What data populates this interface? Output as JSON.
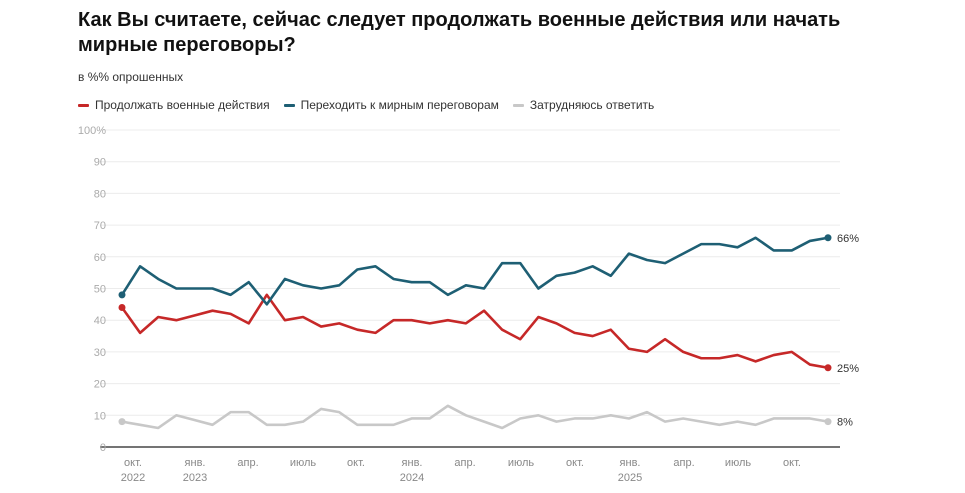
{
  "title": "Как Вы считаете, сейчас следует продолжать военные действия или начать мирные переговоры?",
  "subtitle": "в %% опрошенных",
  "chart_data": {
    "type": "line",
    "title": "Как Вы считаете, сейчас следует продолжать военные действия или начать мирные переговоры?",
    "ylabel": "в %% опрошенных",
    "ylim": [
      0,
      100
    ],
    "y_ticks": [
      "0",
      "10",
      "20",
      "30",
      "40",
      "50",
      "60",
      "70",
      "80",
      "90",
      "100%"
    ],
    "x_tick_labels": [
      [
        "окт.",
        "2022"
      ],
      [
        "янв.",
        "2023"
      ],
      [
        "апр.",
        ""
      ],
      [
        "июль",
        ""
      ],
      [
        "окт.",
        ""
      ],
      [
        "янв.",
        "2024"
      ],
      [
        "апр.",
        ""
      ],
      [
        "июль",
        ""
      ],
      [
        "окт.",
        ""
      ],
      [
        "янв.",
        "2025"
      ],
      [
        "апр.",
        ""
      ],
      [
        "июль",
        ""
      ],
      [
        "окт.",
        ""
      ]
    ],
    "grid": true,
    "legend": "top-left",
    "series": [
      {
        "name": "Продолжать военные действия",
        "color": "#c62828",
        "end_label": "25%",
        "values": [
          44,
          36,
          41,
          40,
          41.5,
          43,
          42,
          39,
          48,
          40,
          41,
          38,
          39,
          37,
          36,
          40,
          40,
          39,
          40,
          39,
          43,
          37,
          34,
          41,
          39,
          36,
          35,
          37,
          31,
          30,
          34,
          30,
          28,
          28,
          29,
          27,
          29,
          30,
          26,
          25
        ]
      },
      {
        "name": "Переходить к мирным переговорам",
        "color": "#1e5f74",
        "end_label": "66%",
        "values": [
          48,
          57,
          53,
          50,
          50,
          50,
          48,
          52,
          45,
          53,
          51,
          50,
          51,
          56,
          57,
          53,
          52,
          52,
          48,
          51,
          50,
          58,
          58,
          50,
          54,
          55,
          57,
          54,
          61,
          59,
          58,
          61,
          64,
          64,
          63,
          66,
          62,
          62,
          65,
          66
        ]
      },
      {
        "name": "Затрудняюсь ответить",
        "color": "#c8c8c8",
        "end_label": "8%",
        "values": [
          8,
          7,
          6,
          10,
          8.5,
          7,
          11,
          11,
          7,
          7,
          8,
          12,
          11,
          7,
          7,
          7,
          9,
          9,
          13,
          10,
          8,
          6,
          9,
          10,
          8,
          9,
          9,
          10,
          9,
          11,
          8,
          9,
          8,
          7,
          8,
          7,
          9,
          9,
          9,
          8
        ]
      }
    ]
  }
}
